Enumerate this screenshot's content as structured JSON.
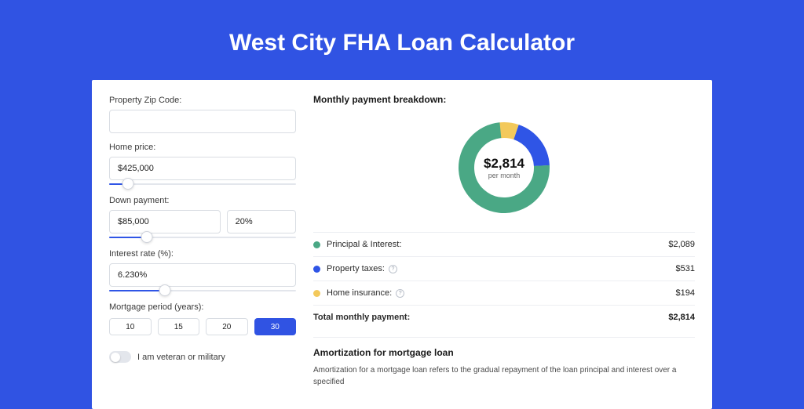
{
  "title": "West City FHA Loan Calculator",
  "colors": {
    "page_bg": "#3053e3",
    "card_bg": "#ffffff",
    "accent": "#2f55e6",
    "text": "#1a1a1a",
    "muted": "#666666",
    "border": "#d9dde3"
  },
  "form": {
    "zip": {
      "label": "Property Zip Code:",
      "value": ""
    },
    "home_price": {
      "label": "Home price:",
      "value": "$425,000",
      "slider_pct": 10
    },
    "down_payment": {
      "label": "Down payment:",
      "value": "$85,000",
      "percent": "20%",
      "slider_pct": 20
    },
    "interest_rate": {
      "label": "Interest rate (%):",
      "value": "6.230%",
      "slider_pct": 30
    },
    "mortgage_period": {
      "label": "Mortgage period (years):",
      "options": [
        "10",
        "15",
        "20",
        "30"
      ],
      "selected": 3
    },
    "veteran": {
      "label": "I am veteran or military",
      "checked": false
    }
  },
  "breakdown": {
    "title": "Monthly payment breakdown:",
    "donut": {
      "amount": "$2,814",
      "sub": "per month",
      "size": 120,
      "thickness": 20,
      "segments": [
        {
          "label": "Principal & Interest",
          "value_pct": 74.2,
          "color": "#4aa885"
        },
        {
          "label": "Property taxes",
          "value_pct": 18.9,
          "color": "#2f55e6"
        },
        {
          "label": "Home insurance",
          "value_pct": 6.9,
          "color": "#f3c95b"
        }
      ]
    },
    "items": [
      {
        "dot": "#4aa885",
        "label": "Principal & Interest:",
        "info": false,
        "value": "$2,089"
      },
      {
        "dot": "#2f55e6",
        "label": "Property taxes:",
        "info": true,
        "value": "$531"
      },
      {
        "dot": "#f3c95b",
        "label": "Home insurance:",
        "info": true,
        "value": "$194"
      }
    ],
    "total": {
      "label": "Total monthly payment:",
      "value": "$2,814"
    }
  },
  "amortization": {
    "title": "Amortization for mortgage loan",
    "text": "Amortization for a mortgage loan refers to the gradual repayment of the loan principal and interest over a specified"
  }
}
